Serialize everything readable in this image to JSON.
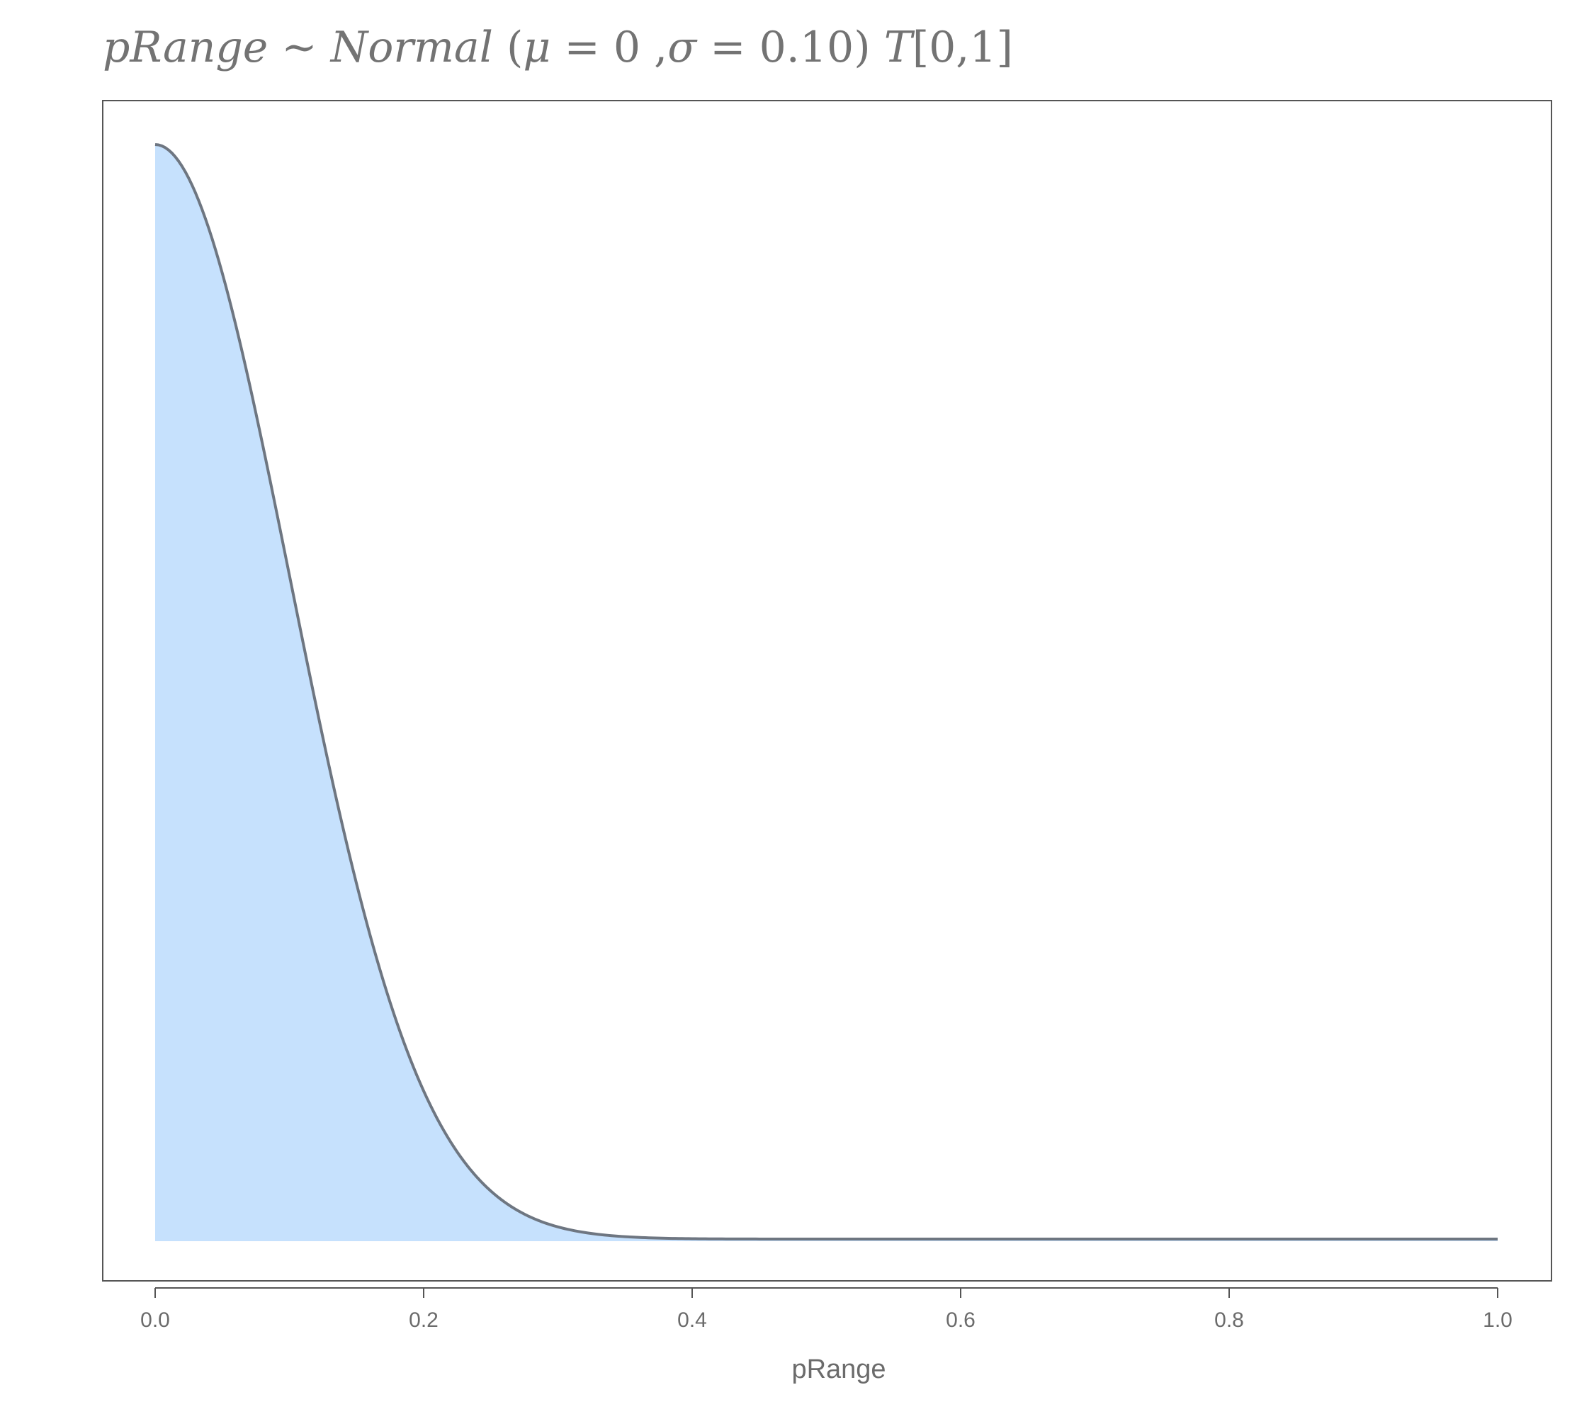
{
  "chart_data": {
    "type": "area",
    "title": {
      "lhs": "pRange",
      "tilde": "~",
      "dist": "Normal",
      "open_paren": "(",
      "mu_symbol": "μ",
      "eq1": "=",
      "mu_value": "0",
      "comma": ",",
      "sigma_symbol": "σ",
      "eq2": "=",
      "sigma_value": "0.10",
      "close_paren": ")",
      "trunc_symbol": "T",
      "trunc_bounds": "[0,1]"
    },
    "distribution": {
      "family": "normal",
      "mu": 0,
      "sigma": 0.1,
      "truncation": [
        0,
        1
      ]
    },
    "xlabel": "pRange",
    "ylabel": "",
    "xlim": [
      0,
      1
    ],
    "x_ticks": [
      0.0,
      0.2,
      0.4,
      0.6,
      0.8,
      1.0
    ],
    "x_tick_labels": [
      "0.0",
      "0.2",
      "0.4",
      "0.6",
      "0.8",
      "1.0"
    ],
    "series": [
      {
        "x": [
          0.0,
          0.05,
          0.1,
          0.15,
          0.2,
          0.25,
          0.3,
          0.35,
          0.4,
          0.5,
          0.6,
          0.7,
          0.8,
          0.9,
          1.0
        ],
        "values": [
          7.98,
          7.04,
          4.84,
          2.59,
          1.08,
          0.35,
          0.09,
          0.02,
          0.0,
          0.0,
          0.0,
          0.0,
          0.0,
          0.0,
          0.0
        ]
      }
    ],
    "fill_color": "#c6e1fd",
    "line_color": "#6e7681",
    "grid": false,
    "y_axis_shown": false
  },
  "colors": {
    "text": "#6b6b6b",
    "frame": "#555555"
  }
}
